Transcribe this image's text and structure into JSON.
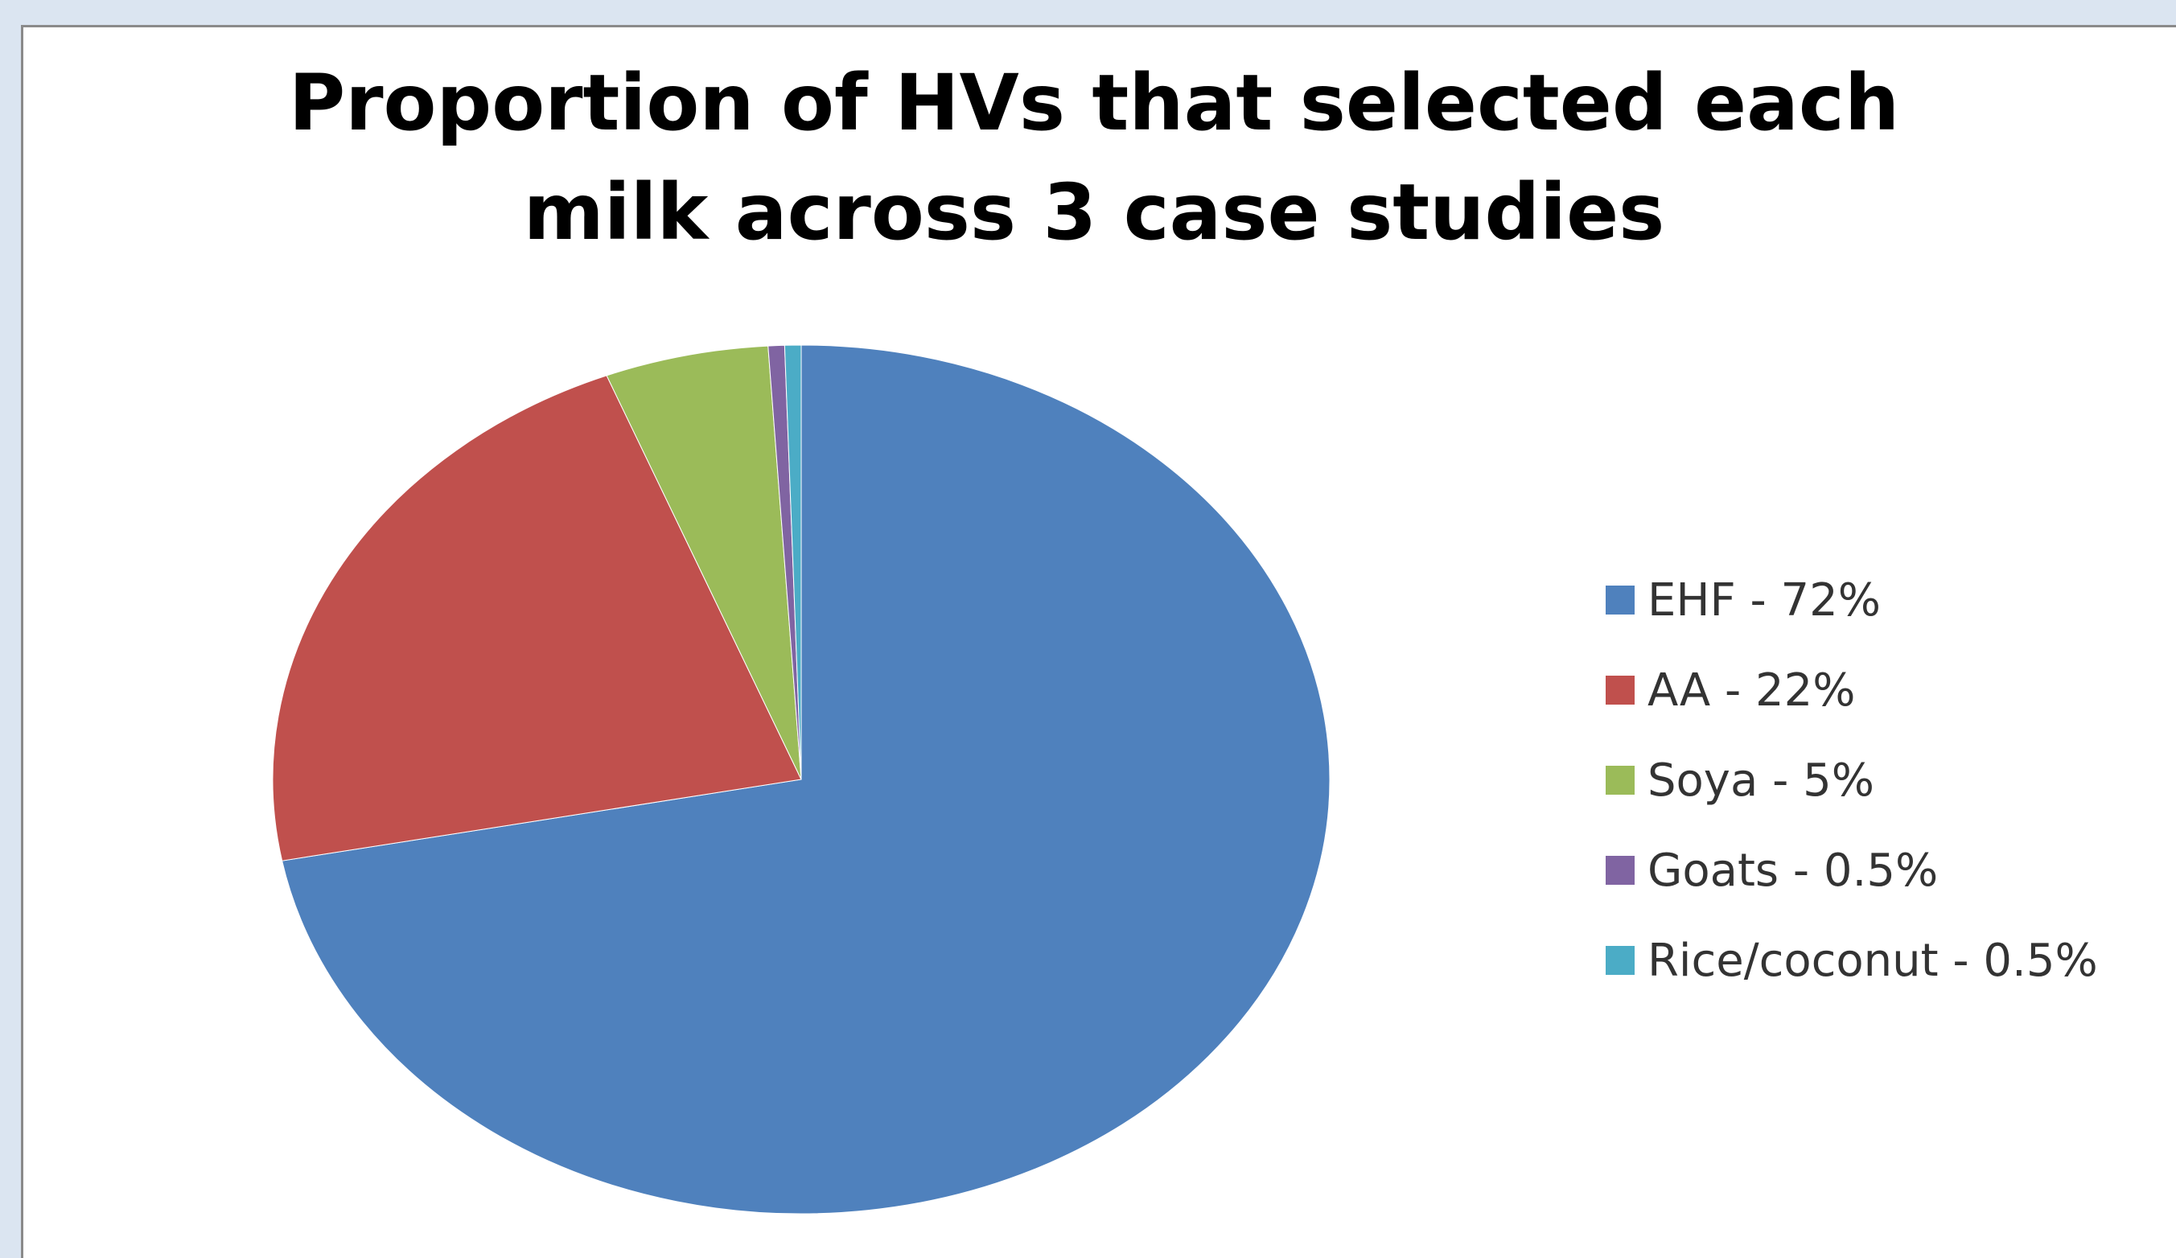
{
  "chart_data": {
    "type": "pie",
    "title": "Proportion of HVs that selected each milk across 3 case studies",
    "title_lines": [
      "Proportion of HVs that selected each",
      "milk across 3 case studies"
    ],
    "legend_position": "right",
    "slices": [
      {
        "label": "EHF - 72%",
        "name": "EHF",
        "value": 72,
        "color": "#4f81bd"
      },
      {
        "label": "AA - 22%",
        "name": "AA",
        "value": 22,
        "color": "#c0504d"
      },
      {
        "label": "Soya - 5%",
        "name": "Soya",
        "value": 5,
        "color": "#9bbb59"
      },
      {
        "label": "Goats - 0.5%",
        "name": "Goats",
        "value": 0.5,
        "color": "#8064a2"
      },
      {
        "label": "Rice/coconut - 0.5%",
        "name": "Rice/coconut",
        "value": 0.5,
        "color": "#4bacc6"
      }
    ]
  }
}
